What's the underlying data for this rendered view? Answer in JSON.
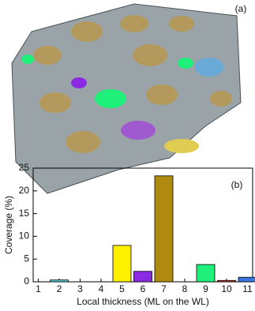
{
  "figure": {
    "label": "(a)"
  },
  "chart_data": {
    "type": "bar",
    "annotation": "(b)",
    "xlabel": "Local thickness (ML on the WL)",
    "ylabel": "Coverage (%)",
    "categories": [
      "1",
      "2",
      "3",
      "4",
      "5",
      "6",
      "7",
      "8",
      "9",
      "10",
      "11"
    ],
    "values": [
      0,
      0.4,
      0,
      0,
      8.0,
      2.3,
      23.3,
      0,
      3.8,
      0.3,
      1.0
    ],
    "colors": [
      "#888888",
      "#5fd3e0",
      "#888888",
      "#888888",
      "#fff000",
      "#8a2be2",
      "#b08a10",
      "#888888",
      "#1ef07a",
      "#d03a2a",
      "#3a78e0"
    ],
    "ylim": [
      0,
      25
    ],
    "yticks": [
      0,
      5,
      10,
      15,
      20,
      25
    ]
  }
}
